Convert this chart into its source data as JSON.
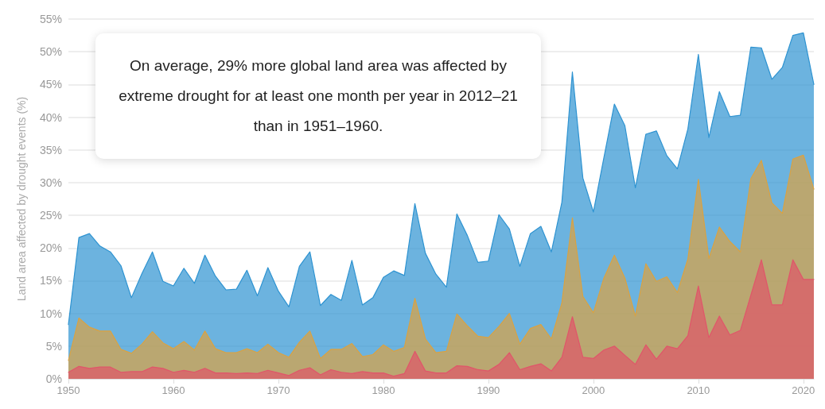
{
  "chart_data": {
    "type": "area",
    "ylabel": "Land area affected by drought events (%)",
    "annotations": [
      "On average, 29% more global land area was affected by extreme drought for at least one month per year in 2012–21 than in 1951–1960."
    ],
    "x": [
      1950,
      1951,
      1952,
      1953,
      1954,
      1955,
      1956,
      1957,
      1958,
      1959,
      1960,
      1961,
      1962,
      1963,
      1964,
      1965,
      1966,
      1967,
      1968,
      1969,
      1970,
      1971,
      1972,
      1973,
      1974,
      1975,
      1976,
      1977,
      1978,
      1979,
      1980,
      1981,
      1982,
      1983,
      1984,
      1985,
      1986,
      1987,
      1988,
      1989,
      1990,
      1991,
      1992,
      1993,
      1994,
      1995,
      1996,
      1997,
      1998,
      1999,
      2000,
      2001,
      2002,
      2003,
      2004,
      2005,
      2006,
      2007,
      2008,
      2009,
      2010,
      2011,
      2012,
      2013,
      2014,
      2015,
      2016,
      2017,
      2018,
      2019,
      2020,
      2021
    ],
    "series": [
      {
        "color": "#2e93d1",
        "values": [
          8.3,
          21.6,
          22.2,
          20.3,
          19.4,
          17.3,
          12.4,
          16.1,
          19.4,
          14.9,
          14.2,
          16.9,
          14.6,
          18.9,
          15.7,
          13.6,
          13.7,
          16.6,
          12.7,
          17.0,
          13.4,
          11.0,
          17.2,
          19.4,
          11.2,
          12.9,
          12.0,
          18.1,
          11.3,
          12.4,
          15.5,
          16.5,
          15.8,
          26.8,
          19.2,
          16.0,
          14.0,
          25.2,
          21.9,
          17.8,
          18.0,
          25.1,
          22.9,
          17.2,
          22.2,
          23.3,
          19.4,
          27.0,
          46.9,
          30.7,
          25.5,
          33.8,
          42.0,
          38.7,
          29.2,
          37.4,
          37.9,
          34.1,
          32.1,
          38.2,
          49.6,
          36.9,
          43.9,
          40.1,
          40.3,
          50.7,
          50.6,
          45.8,
          47.6,
          52.5,
          52.9,
          45.0
        ]
      },
      {
        "color": "#dba241",
        "values": [
          2.8,
          9.3,
          7.9,
          7.3,
          7.3,
          4.5,
          3.9,
          5.3,
          7.2,
          5.5,
          4.6,
          5.7,
          4.4,
          7.3,
          4.6,
          4.0,
          4.0,
          4.6,
          4.0,
          5.3,
          4.0,
          3.3,
          5.6,
          7.3,
          3.1,
          4.5,
          4.5,
          5.4,
          3.4,
          3.7,
          5.2,
          4.2,
          4.8,
          12.3,
          6.1,
          4.0,
          4.2,
          9.9,
          8.1,
          6.5,
          6.3,
          8.0,
          10.0,
          5.3,
          7.7,
          8.3,
          6.1,
          11.6,
          24.6,
          12.6,
          10.1,
          15.4,
          18.9,
          15.4,
          9.6,
          17.6,
          14.9,
          15.6,
          13.2,
          18.3,
          30.5,
          18.4,
          23.2,
          21.0,
          19.4,
          30.6,
          33.4,
          26.9,
          25.3,
          33.6,
          34.2,
          29.0
        ]
      },
      {
        "color": "#e0566a",
        "values": [
          1.0,
          1.9,
          1.6,
          1.8,
          1.8,
          1.0,
          1.1,
          1.1,
          1.8,
          1.6,
          1.0,
          1.3,
          1.0,
          1.6,
          0.9,
          0.9,
          0.8,
          0.9,
          0.8,
          1.3,
          0.9,
          0.5,
          1.3,
          1.7,
          0.6,
          1.4,
          1.0,
          0.8,
          1.1,
          0.9,
          0.9,
          0.4,
          0.8,
          4.2,
          1.2,
          0.9,
          0.9,
          2.0,
          1.9,
          1.4,
          1.2,
          2.2,
          4.0,
          1.4,
          1.9,
          2.3,
          1.2,
          3.3,
          9.5,
          3.3,
          3.1,
          4.4,
          5.0,
          3.6,
          2.2,
          5.2,
          3.0,
          5.0,
          4.6,
          6.6,
          14.2,
          6.3,
          9.6,
          6.7,
          7.4,
          12.8,
          18.2,
          11.3,
          11.3,
          18.2,
          15.2,
          15.2
        ]
      }
    ],
    "xlim": [
      1950,
      2021
    ],
    "xticks": [
      1950,
      1960,
      1970,
      1980,
      1990,
      2000,
      2010,
      2020
    ],
    "ylim": [
      0,
      55
    ],
    "yticks": [
      {
        "value": 0,
        "label": "0%"
      },
      {
        "value": 5,
        "label": "5%"
      },
      {
        "value": 10,
        "label": "10%"
      },
      {
        "value": 15,
        "label": "15%"
      },
      {
        "value": 20,
        "label": "20%"
      },
      {
        "value": 25,
        "label": "25%"
      },
      {
        "value": 30,
        "label": "30%"
      },
      {
        "value": 35,
        "label": "35%"
      },
      {
        "value": 40,
        "label": "40%"
      },
      {
        "value": 45,
        "label": "45%"
      },
      {
        "value": 50,
        "label": "50%"
      },
      {
        "value": 55,
        "label": "55%"
      }
    ],
    "grid": "y",
    "marker": "none",
    "line_style": "solid"
  }
}
